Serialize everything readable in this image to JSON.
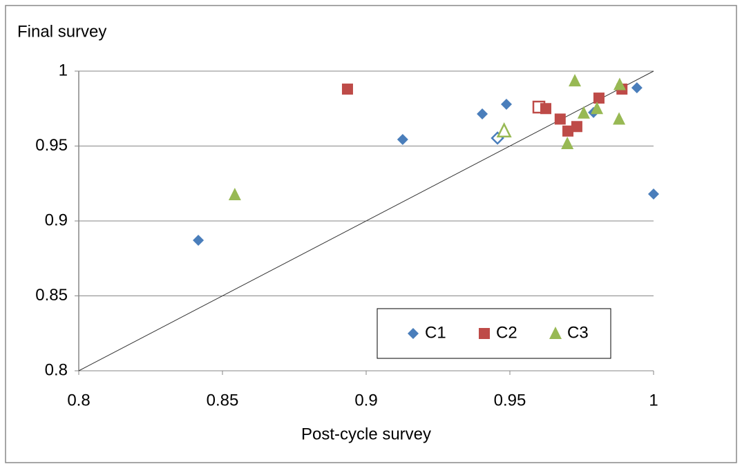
{
  "chart_data": {
    "type": "scatter",
    "y_label": "Final survey",
    "x_label": "Post-cycle survey",
    "xlim": [
      0.8,
      1
    ],
    "ylim": [
      0.8,
      1
    ],
    "xticks": [
      0.8,
      0.85,
      0.9,
      0.95,
      1
    ],
    "yticks": [
      0.8,
      0.85,
      0.9,
      0.95,
      1
    ],
    "grid": true,
    "diagonal": true,
    "legend": "lower right",
    "series": [
      {
        "name": "C1",
        "color": "#4a7ebb",
        "marker": "diamond",
        "x": [
          0.8416,
          0.9127,
          0.9404,
          0.9488,
          0.9457,
          0.9791,
          0.9942,
          1.0
        ],
        "y": [
          0.8871,
          0.9544,
          0.9714,
          0.9779,
          0.9553,
          0.9724,
          0.9889,
          0.918
        ],
        "open_markers": [
          4
        ]
      },
      {
        "name": "C2",
        "color": "#be4b48",
        "marker": "square",
        "x": [
          0.8935,
          0.9601,
          0.9625,
          0.9675,
          0.9702,
          0.9733,
          0.981,
          0.989
        ],
        "y": [
          0.988,
          0.976,
          0.975,
          0.968,
          0.96,
          0.963,
          0.982,
          0.988
        ],
        "open_markers": [
          1
        ]
      },
      {
        "name": "C3",
        "color": "#98b954",
        "marker": "triangle",
        "x": [
          0.8543,
          0.948,
          0.9726,
          0.97,
          0.9757,
          0.9803,
          0.9882,
          0.988
        ],
        "y": [
          0.9175,
          0.96,
          0.9935,
          0.9516,
          0.972,
          0.975,
          0.991,
          0.968
        ],
        "open_markers": [
          1
        ]
      }
    ]
  }
}
